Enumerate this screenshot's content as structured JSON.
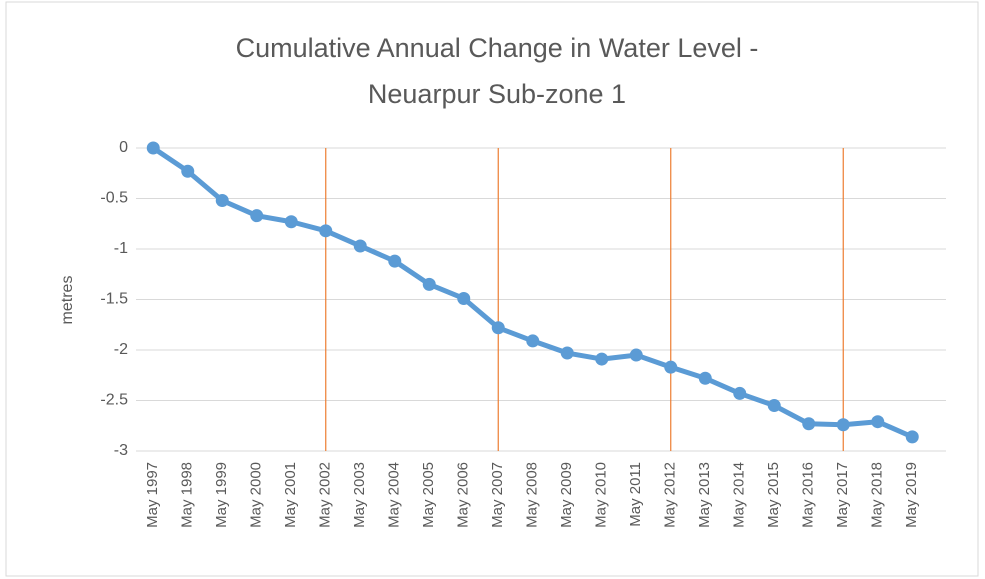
{
  "chart_data": {
    "type": "line",
    "title": [
      "Cumulative Annual Change in Water Level -",
      "Neuarpur Sub-zone 1"
    ],
    "y_label": "metres",
    "categories": [
      "May 1997",
      "May 1998",
      "May 1999",
      "May 2000",
      "May 2001",
      "May 2002",
      "May 2003",
      "May 2004",
      "May 2005",
      "May 2006",
      "May 2007",
      "May 2008",
      "May 2009",
      "May 2010",
      "May 2011",
      "May 2012",
      "May 2013",
      "May 2014",
      "May 2015",
      "May 2016",
      "May 2017",
      "May 2018",
      "May 2019"
    ],
    "values": [
      0,
      -0.23,
      -0.52,
      -0.67,
      -0.73,
      -0.82,
      -0.97,
      -1.12,
      -1.35,
      -1.49,
      -1.78,
      -1.91,
      -2.03,
      -2.09,
      -2.05,
      -2.17,
      -2.28,
      -2.43,
      -2.55,
      -2.73,
      -2.74,
      -2.71,
      -2.86
    ],
    "color": "#5b9bd5",
    "ylim": [
      -3,
      0
    ],
    "yticks": [
      0,
      -0.5,
      -1,
      -1.5,
      -2,
      -2.5,
      -3
    ],
    "grid": true,
    "vlines": [
      "May 2002",
      "May 2007",
      "May 2012",
      "May 2017"
    ],
    "vline_color": "#ed7d31"
  }
}
